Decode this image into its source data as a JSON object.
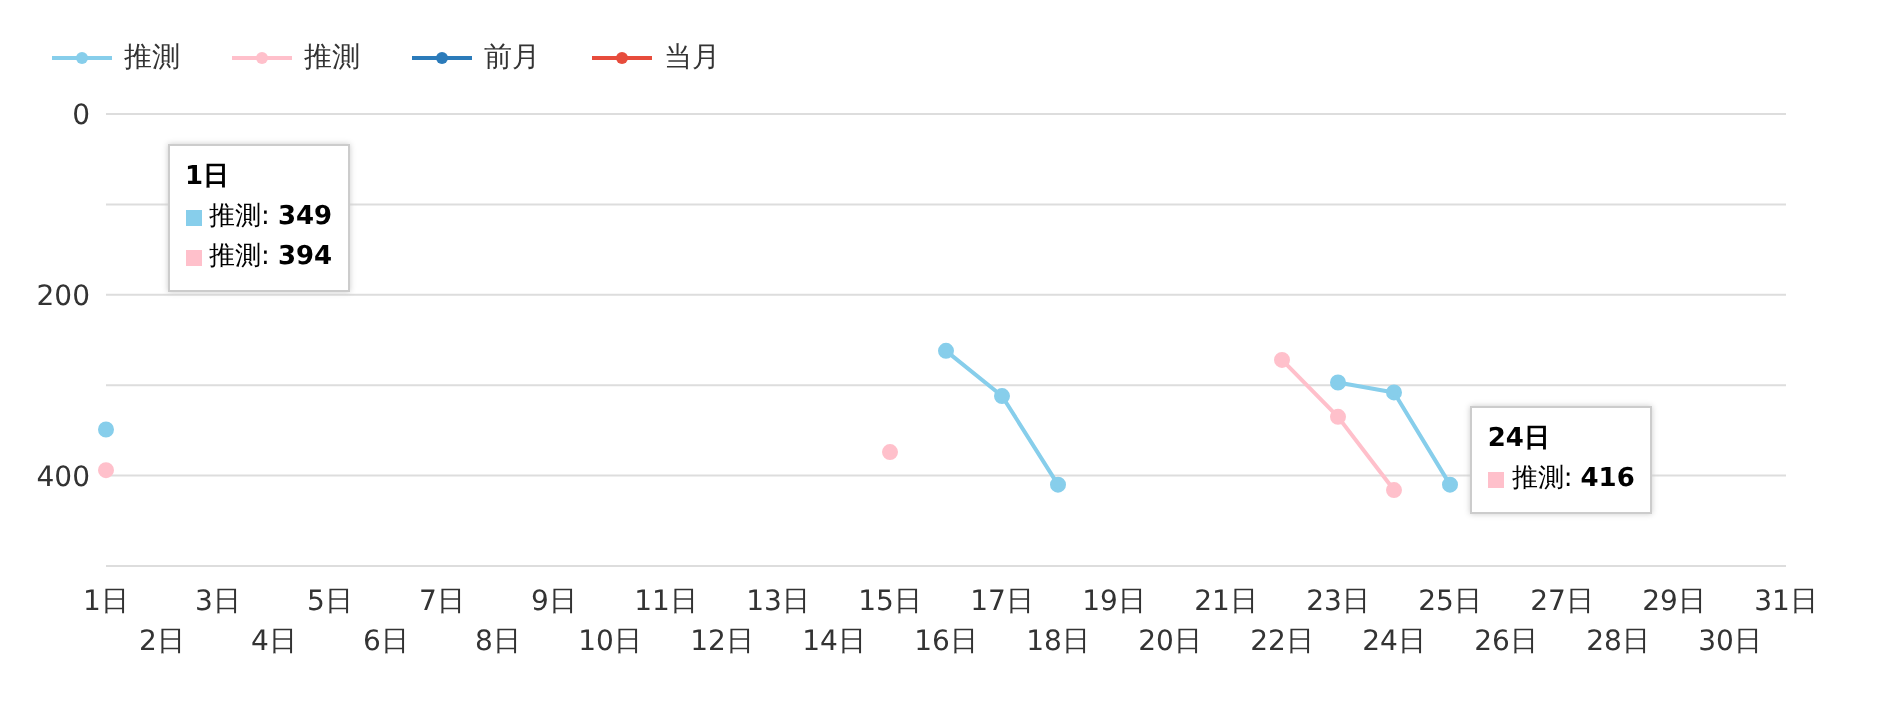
{
  "chart_data": {
    "type": "line",
    "categories": [
      "1日",
      "2日",
      "3日",
      "4日",
      "5日",
      "6日",
      "7日",
      "8日",
      "9日",
      "10日",
      "11日",
      "12日",
      "13日",
      "14日",
      "15日",
      "16日",
      "17日",
      "18日",
      "19日",
      "20日",
      "21日",
      "22日",
      "23日",
      "24日",
      "25日",
      "26日",
      "27日",
      "28日",
      "29日",
      "30日",
      "31日"
    ],
    "series": [
      {
        "name": "推測",
        "color": "#87ceeb",
        "values": [
          349,
          null,
          null,
          null,
          null,
          null,
          null,
          null,
          null,
          null,
          null,
          null,
          null,
          null,
          null,
          262,
          312,
          410,
          null,
          null,
          null,
          null,
          297,
          308,
          410,
          null,
          null,
          null,
          null,
          null,
          null
        ]
      },
      {
        "name": "推測",
        "color": "#ffc0cb",
        "values": [
          394,
          null,
          null,
          null,
          null,
          null,
          null,
          null,
          null,
          null,
          null,
          null,
          null,
          null,
          374,
          null,
          null,
          null,
          null,
          null,
          null,
          272,
          335,
          416,
          null,
          null,
          null,
          null,
          null,
          null,
          null
        ]
      },
      {
        "name": "前月",
        "color": "#2b7bba",
        "values": [
          null,
          null,
          null,
          null,
          null,
          null,
          null,
          null,
          null,
          null,
          null,
          null,
          null,
          null,
          null,
          null,
          null,
          null,
          null,
          null,
          null,
          null,
          null,
          null,
          null,
          null,
          null,
          null,
          null,
          null,
          null
        ]
      },
      {
        "name": "当月",
        "color": "#e74c3c",
        "values": [
          null,
          null,
          null,
          null,
          null,
          null,
          null,
          null,
          null,
          null,
          null,
          null,
          null,
          null,
          null,
          null,
          null,
          null,
          null,
          null,
          null,
          null,
          null,
          null,
          null,
          null,
          null,
          null,
          null,
          null,
          null
        ]
      }
    ],
    "ylim": [
      500,
      0
    ],
    "yticks": [
      0,
      {
        "value": 100,
        "label": null
      },
      200,
      {
        "value": 300,
        "label": null
      },
      400,
      {
        "value": 500,
        "label": null
      }
    ],
    "grid": "y",
    "legend": "top left",
    "marker": "circle",
    "line_style": "solid",
    "annotations": [
      "1日",
      "推測: 349",
      "推測: 394",
      "24日",
      "推測: 416"
    ]
  }
}
